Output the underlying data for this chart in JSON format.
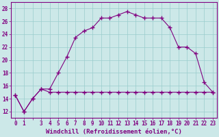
{
  "xlabel": "Windchill (Refroidissement éolien,°C)",
  "hours": [
    0,
    1,
    2,
    3,
    4,
    5,
    6,
    7,
    8,
    9,
    10,
    11,
    12,
    13,
    14,
    15,
    16,
    17,
    18,
    19,
    20,
    21,
    22,
    23
  ],
  "temp": [
    14.5,
    12.0,
    14.0,
    15.5,
    15.5,
    18.0,
    20.5,
    23.5,
    24.5,
    25.0,
    26.5,
    26.5,
    27.0,
    27.5,
    27.0,
    26.5,
    26.5,
    26.5,
    25.0,
    22.0,
    22.0,
    21.0,
    16.5,
    15.0
  ],
  "windchill": [
    14.5,
    12.0,
    14.0,
    15.5,
    15.0,
    15.0,
    15.0,
    15.0,
    15.0,
    15.0,
    15.0,
    15.0,
    15.0,
    15.0,
    15.0,
    15.0,
    15.0,
    15.0,
    15.0,
    15.0,
    15.0,
    15.0,
    15.0,
    15.0
  ],
  "line_color": "#800080",
  "bg_color": "#cce8e8",
  "grid_color": "#99cccc",
  "ylim": [
    11,
    29
  ],
  "yticks": [
    12,
    14,
    16,
    18,
    20,
    22,
    24,
    26,
    28
  ],
  "xtick_labels": [
    "0",
    "1",
    "",
    "3",
    "4",
    "5",
    "6",
    "7",
    "8",
    "9",
    "10",
    "11",
    "12",
    "13",
    "14",
    "15",
    "16",
    "17",
    "18",
    "19",
    "20",
    "21",
    "22",
    "23"
  ]
}
